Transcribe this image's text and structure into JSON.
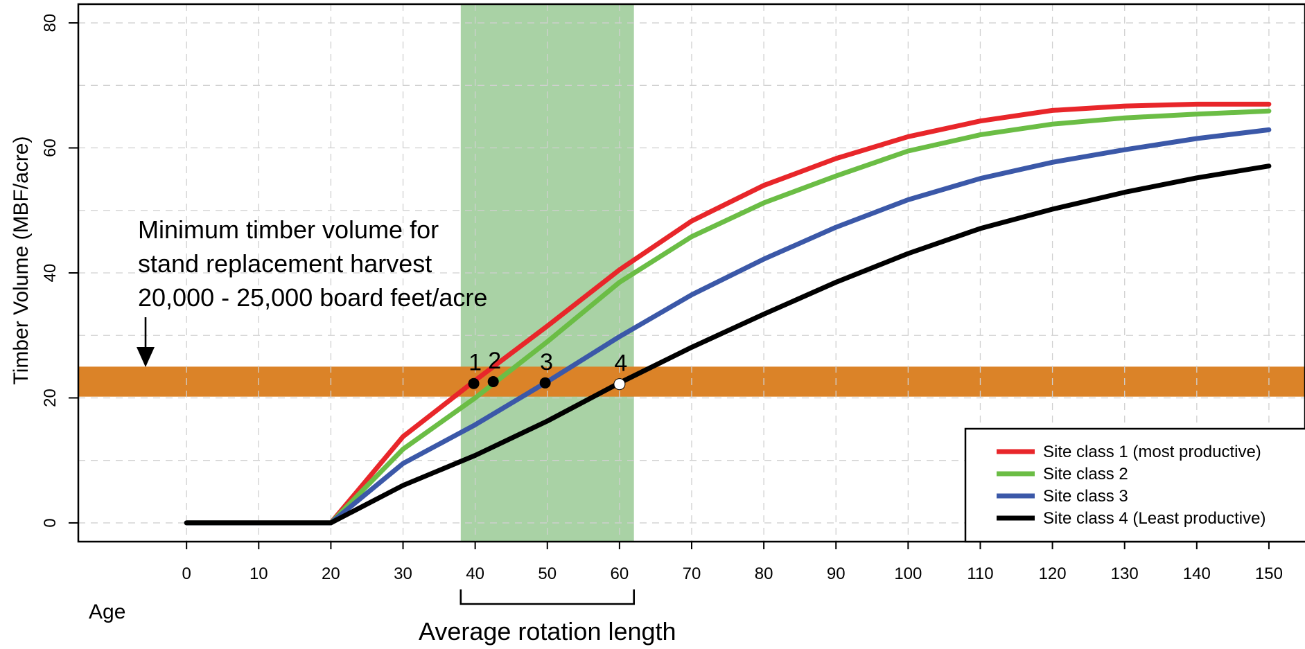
{
  "chart_data": {
    "type": "line",
    "xlabel": "Age",
    "ylabel": "Timber Volume (MBF/acre)",
    "xlim": [
      -15,
      155
    ],
    "ylim": [
      -3,
      83
    ],
    "x_ticks": [
      0,
      10,
      20,
      30,
      40,
      50,
      60,
      70,
      80,
      90,
      100,
      110,
      120,
      130,
      140,
      150
    ],
    "y_ticks": [
      0,
      20,
      40,
      60,
      80
    ],
    "grid": true,
    "legend_position": "bottom-right",
    "x": [
      0,
      20,
      30,
      40,
      50,
      60,
      70,
      80,
      90,
      100,
      110,
      120,
      130,
      140,
      150
    ],
    "series": [
      {
        "name": "Site class 1 (most productive)",
        "color": "#e8262a",
        "values": [
          0,
          0,
          13.8,
          22.8,
          31.5,
          40.5,
          48.3,
          54,
          58.3,
          61.8,
          64.3,
          66,
          66.7,
          67,
          67
        ]
      },
      {
        "name": "Site class 2",
        "color": "#6bbd45",
        "values": [
          0,
          0,
          11.8,
          20,
          29,
          38.5,
          45.8,
          51.2,
          55.5,
          59.5,
          62.1,
          63.8,
          64.8,
          65.4,
          65.9
        ]
      },
      {
        "name": "Site class 3",
        "color": "#3b58a8",
        "values": [
          0,
          0,
          9.5,
          15.7,
          22.6,
          29.8,
          36.5,
          42.2,
          47.3,
          51.7,
          55.1,
          57.7,
          59.7,
          61.5,
          62.9
        ]
      },
      {
        "name": "Site class 4 (Least productive)",
        "color": "#000000",
        "values": [
          0,
          0,
          6,
          10.8,
          16.3,
          22.4,
          28.1,
          33.4,
          38.5,
          43.1,
          47.1,
          50.2,
          52.9,
          55.2,
          57.1
        ]
      }
    ],
    "bands": {
      "vertical": {
        "x_from": 38,
        "x_to": 62,
        "color": "#a9d2a5"
      },
      "horizontal": {
        "y_from": 20.2,
        "y_to": 25,
        "color": "#db8328"
      }
    },
    "points": [
      {
        "label": "1",
        "x": 39.8,
        "y": 22.3,
        "fill": "#000000"
      },
      {
        "label": "2",
        "x": 42.5,
        "y": 22.6,
        "fill": "#000000"
      },
      {
        "label": "3",
        "x": 49.7,
        "y": 22.4,
        "fill": "#000000"
      },
      {
        "label": "4",
        "x": 60,
        "y": 22.2,
        "fill": "#ffffff"
      }
    ],
    "annotations": {
      "threshold_lines": [
        "Minimum timber volume for",
        "stand replacement harvest",
        "20,000 - 25,000 board feet/acre"
      ],
      "rotation_label": "Average rotation length"
    }
  }
}
